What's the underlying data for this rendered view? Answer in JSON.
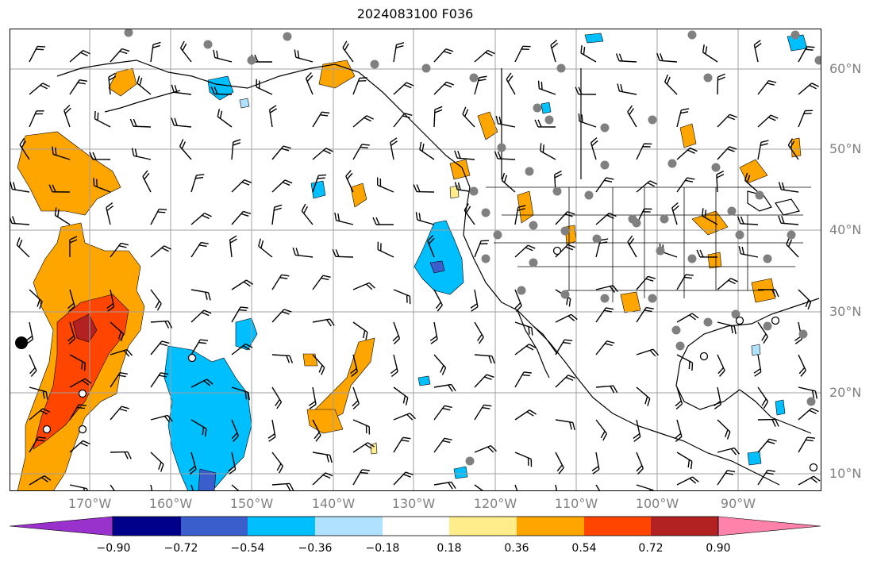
{
  "title": "2024083100 F036",
  "lat_labels": [
    "60°N",
    "50°N",
    "40°N",
    "30°N",
    "20°N",
    "10°N"
  ],
  "lon_labels": [
    "170°W",
    "160°W",
    "150°W",
    "140°W",
    "130°W",
    "120°W",
    "110°W",
    "100°W",
    "90°W"
  ],
  "colorbar": {
    "tick_labels": [
      "−0.90",
      "−0.72",
      "−0.54",
      "−0.36",
      "−0.18",
      "0.18",
      "0.36",
      "0.54",
      "0.72",
      "0.90"
    ],
    "colors": [
      "#9932cc",
      "#00008b",
      "#3a5fcd",
      "#00bfff",
      "#b0e2ff",
      "#ffffff",
      "#ffec8b",
      "#ffa500",
      "#ff4500",
      "#b22222",
      "#ff82ab"
    ]
  },
  "colors": {
    "grid": "#a0a0a0",
    "coast": "#000000",
    "station": "#808080",
    "barb": "#000000"
  }
}
